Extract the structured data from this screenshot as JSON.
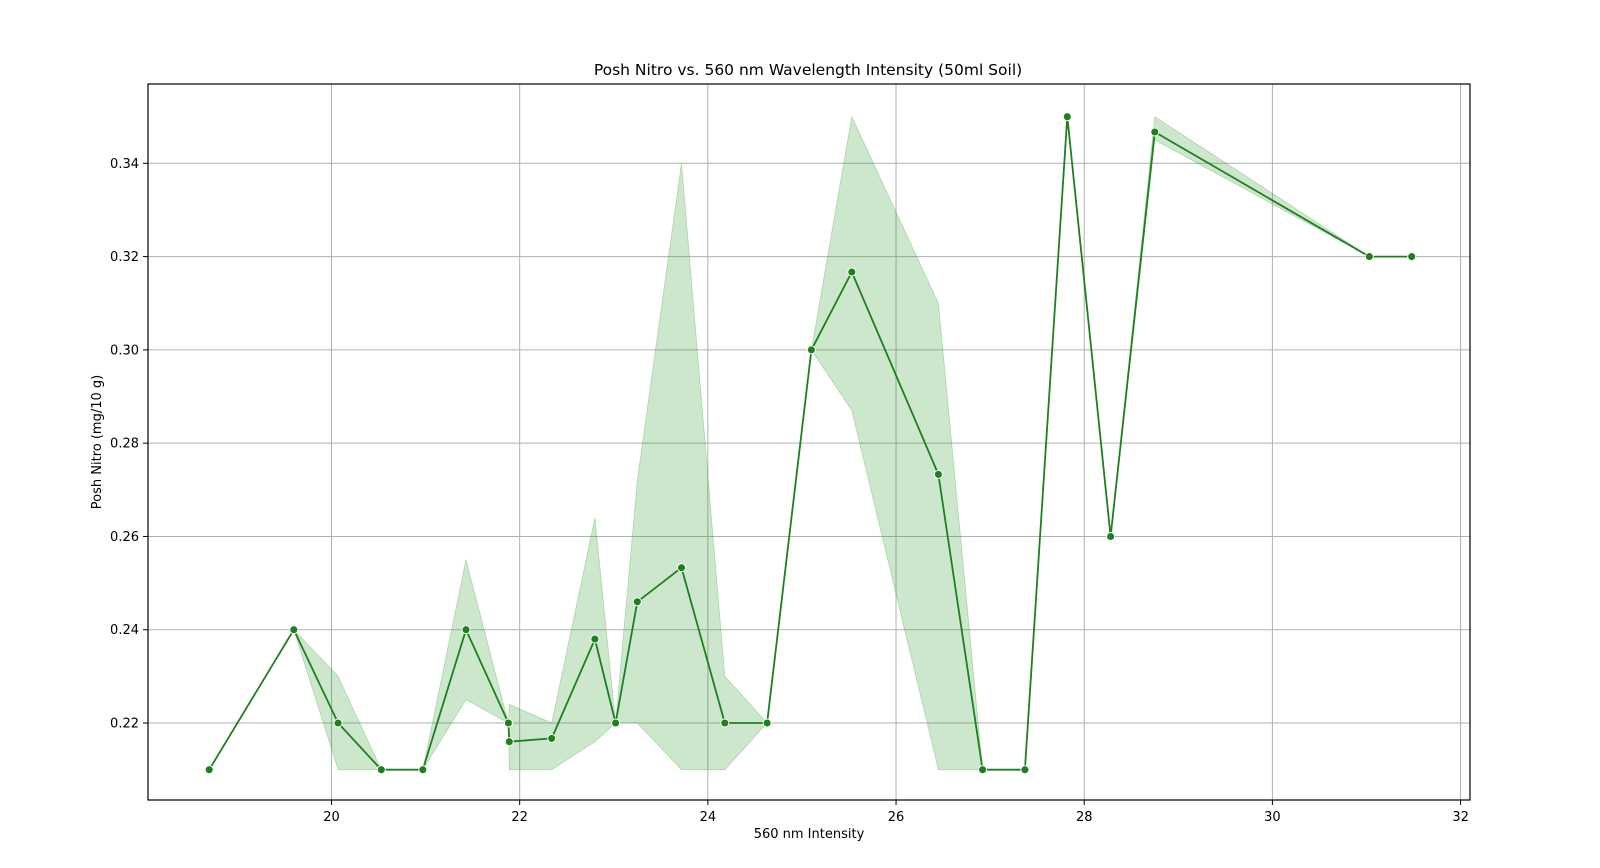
{
  "chart_data": {
    "type": "line",
    "title": "Posh Nitro vs. 560 nm Wavelength Intensity (50ml Soil)",
    "xlabel": "560 nm Intensity",
    "ylabel": "Posh Nitro (mg/10 g)",
    "xlim": [
      18.05,
      32.1
    ],
    "ylim": [
      0.2035,
      0.357
    ],
    "xticks": [
      20,
      22,
      24,
      26,
      28,
      30,
      32
    ],
    "yticks": [
      0.22,
      0.24,
      0.26,
      0.28,
      0.3,
      0.32,
      0.34
    ],
    "xtick_labels": [
      "20",
      "22",
      "24",
      "26",
      "28",
      "30",
      "32"
    ],
    "ytick_labels": [
      "0.22",
      "0.24",
      "0.26",
      "0.28",
      "0.30",
      "0.32",
      "0.34"
    ],
    "grid": true,
    "colors": {
      "line": "#1f7f1f",
      "band": "#2e9a2e"
    },
    "series": [
      {
        "marker": "circle",
        "points": [
          {
            "x": 18.7,
            "y": 0.21,
            "lo": 0.21,
            "hi": 0.21
          },
          {
            "x": 19.6,
            "y": 0.24,
            "lo": 0.24,
            "hi": 0.24
          },
          {
            "x": 20.07,
            "y": 0.22,
            "lo": 0.21,
            "hi": 0.23
          },
          {
            "x": 20.53,
            "y": 0.21,
            "lo": 0.21,
            "hi": 0.21
          },
          {
            "x": 20.97,
            "y": 0.21,
            "lo": 0.21,
            "hi": 0.21
          },
          {
            "x": 21.43,
            "y": 0.24,
            "lo": 0.225,
            "hi": 0.255
          },
          {
            "x": 21.88,
            "y": 0.22,
            "lo": 0.22,
            "hi": 0.22
          },
          {
            "x": 21.89,
            "y": 0.216,
            "lo": 0.21,
            "hi": 0.224
          },
          {
            "x": 22.34,
            "y": 0.2167,
            "lo": 0.21,
            "hi": 0.22
          },
          {
            "x": 22.8,
            "y": 0.238,
            "lo": 0.216,
            "hi": 0.264
          },
          {
            "x": 23.02,
            "y": 0.22,
            "lo": 0.22,
            "hi": 0.22
          },
          {
            "x": 23.25,
            "y": 0.246,
            "lo": 0.22,
            "hi": 0.272
          },
          {
            "x": 23.72,
            "y": 0.2533,
            "lo": 0.21,
            "hi": 0.34
          },
          {
            "x": 24.18,
            "y": 0.22,
            "lo": 0.21,
            "hi": 0.23
          },
          {
            "x": 24.63,
            "y": 0.22,
            "lo": 0.22,
            "hi": 0.22
          },
          {
            "x": 25.1,
            "y": 0.3,
            "lo": 0.3,
            "hi": 0.3
          },
          {
            "x": 25.53,
            "y": 0.3167,
            "lo": 0.287,
            "hi": 0.35
          },
          {
            "x": 26.45,
            "y": 0.2733,
            "lo": 0.21,
            "hi": 0.31
          },
          {
            "x": 26.92,
            "y": 0.21,
            "lo": 0.21,
            "hi": 0.21
          },
          {
            "x": 27.37,
            "y": 0.21,
            "lo": 0.21,
            "hi": 0.21
          },
          {
            "x": 27.82,
            "y": 0.35,
            "lo": 0.35,
            "hi": 0.35
          },
          {
            "x": 28.28,
            "y": 0.26,
            "lo": 0.26,
            "hi": 0.26
          },
          {
            "x": 28.75,
            "y": 0.3467,
            "lo": 0.345,
            "hi": 0.35
          },
          {
            "x": 31.03,
            "y": 0.32,
            "lo": 0.32,
            "hi": 0.32
          },
          {
            "x": 31.48,
            "y": 0.32,
            "lo": 0.32,
            "hi": 0.32
          }
        ]
      }
    ]
  }
}
